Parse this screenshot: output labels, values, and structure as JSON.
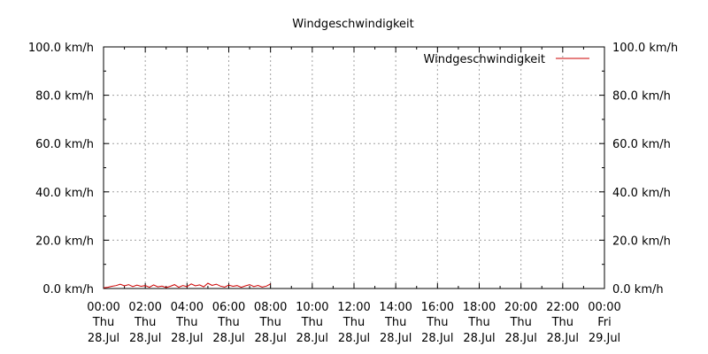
{
  "chart_data": {
    "type": "line",
    "title": "Windgeschwindigkeit",
    "xlabel": "",
    "ylabel": "",
    "ylim": [
      0,
      100
    ],
    "xlim_hours": [
      0,
      24
    ],
    "y_ticks": [
      "0.0 km/h",
      "20.0 km/h",
      "40.0 km/h",
      "60.0 km/h",
      "80.0 km/h",
      "100.0 km/h"
    ],
    "y_tick_values": [
      0,
      20,
      40,
      60,
      80,
      100
    ],
    "x_ticks": [
      {
        "time": "00:00",
        "day": "Thu",
        "date": "28.Jul",
        "hour": 0
      },
      {
        "time": "02:00",
        "day": "Thu",
        "date": "28.Jul",
        "hour": 2
      },
      {
        "time": "04:00",
        "day": "Thu",
        "date": "28.Jul",
        "hour": 4
      },
      {
        "time": "06:00",
        "day": "Thu",
        "date": "28.Jul",
        "hour": 6
      },
      {
        "time": "08:00",
        "day": "Thu",
        "date": "28.Jul",
        "hour": 8
      },
      {
        "time": "10:00",
        "day": "Thu",
        "date": "28.Jul",
        "hour": 10
      },
      {
        "time": "12:00",
        "day": "Thu",
        "date": "28.Jul",
        "hour": 12
      },
      {
        "time": "14:00",
        "day": "Thu",
        "date": "28.Jul",
        "hour": 14
      },
      {
        "time": "16:00",
        "day": "Thu",
        "date": "28.Jul",
        "hour": 16
      },
      {
        "time": "18:00",
        "day": "Thu",
        "date": "28.Jul",
        "hour": 18
      },
      {
        "time": "20:00",
        "day": "Thu",
        "date": "28.Jul",
        "hour": 20
      },
      {
        "time": "22:00",
        "day": "Thu",
        "date": "28.Jul",
        "hour": 22
      },
      {
        "time": "00:00",
        "day": "Fri",
        "date": "29.Jul",
        "hour": 24
      }
    ],
    "legend_position": "top-right",
    "grid": true,
    "series": [
      {
        "name": "Windgeschwindigkeit",
        "color": "#cc0000",
        "x_hours": [
          0.0,
          0.2,
          0.4,
          0.6,
          0.8,
          1.0,
          1.2,
          1.4,
          1.6,
          1.8,
          2.0,
          2.2,
          2.4,
          2.6,
          2.8,
          3.0,
          3.2,
          3.4,
          3.6,
          3.8,
          4.0,
          4.2,
          4.4,
          4.6,
          4.8,
          5.0,
          5.2,
          5.4,
          5.6,
          5.8,
          6.0,
          6.2,
          6.4,
          6.6,
          6.8,
          7.0,
          7.2,
          7.4,
          7.6,
          7.8,
          8.0
        ],
        "y": [
          0.3,
          0.5,
          0.9,
          1.2,
          1.8,
          1.1,
          1.6,
          0.8,
          1.4,
          0.9,
          1.2,
          0.5,
          1.5,
          0.7,
          1.0,
          0.4,
          0.9,
          1.6,
          0.5,
          1.2,
          0.8,
          1.9,
          1.1,
          1.5,
          0.7,
          2.2,
          1.3,
          1.8,
          1.0,
          0.6,
          1.4,
          0.9,
          1.2,
          0.5,
          1.1,
          1.6,
          0.8,
          1.3,
          0.6,
          1.0,
          1.9
        ]
      }
    ]
  }
}
